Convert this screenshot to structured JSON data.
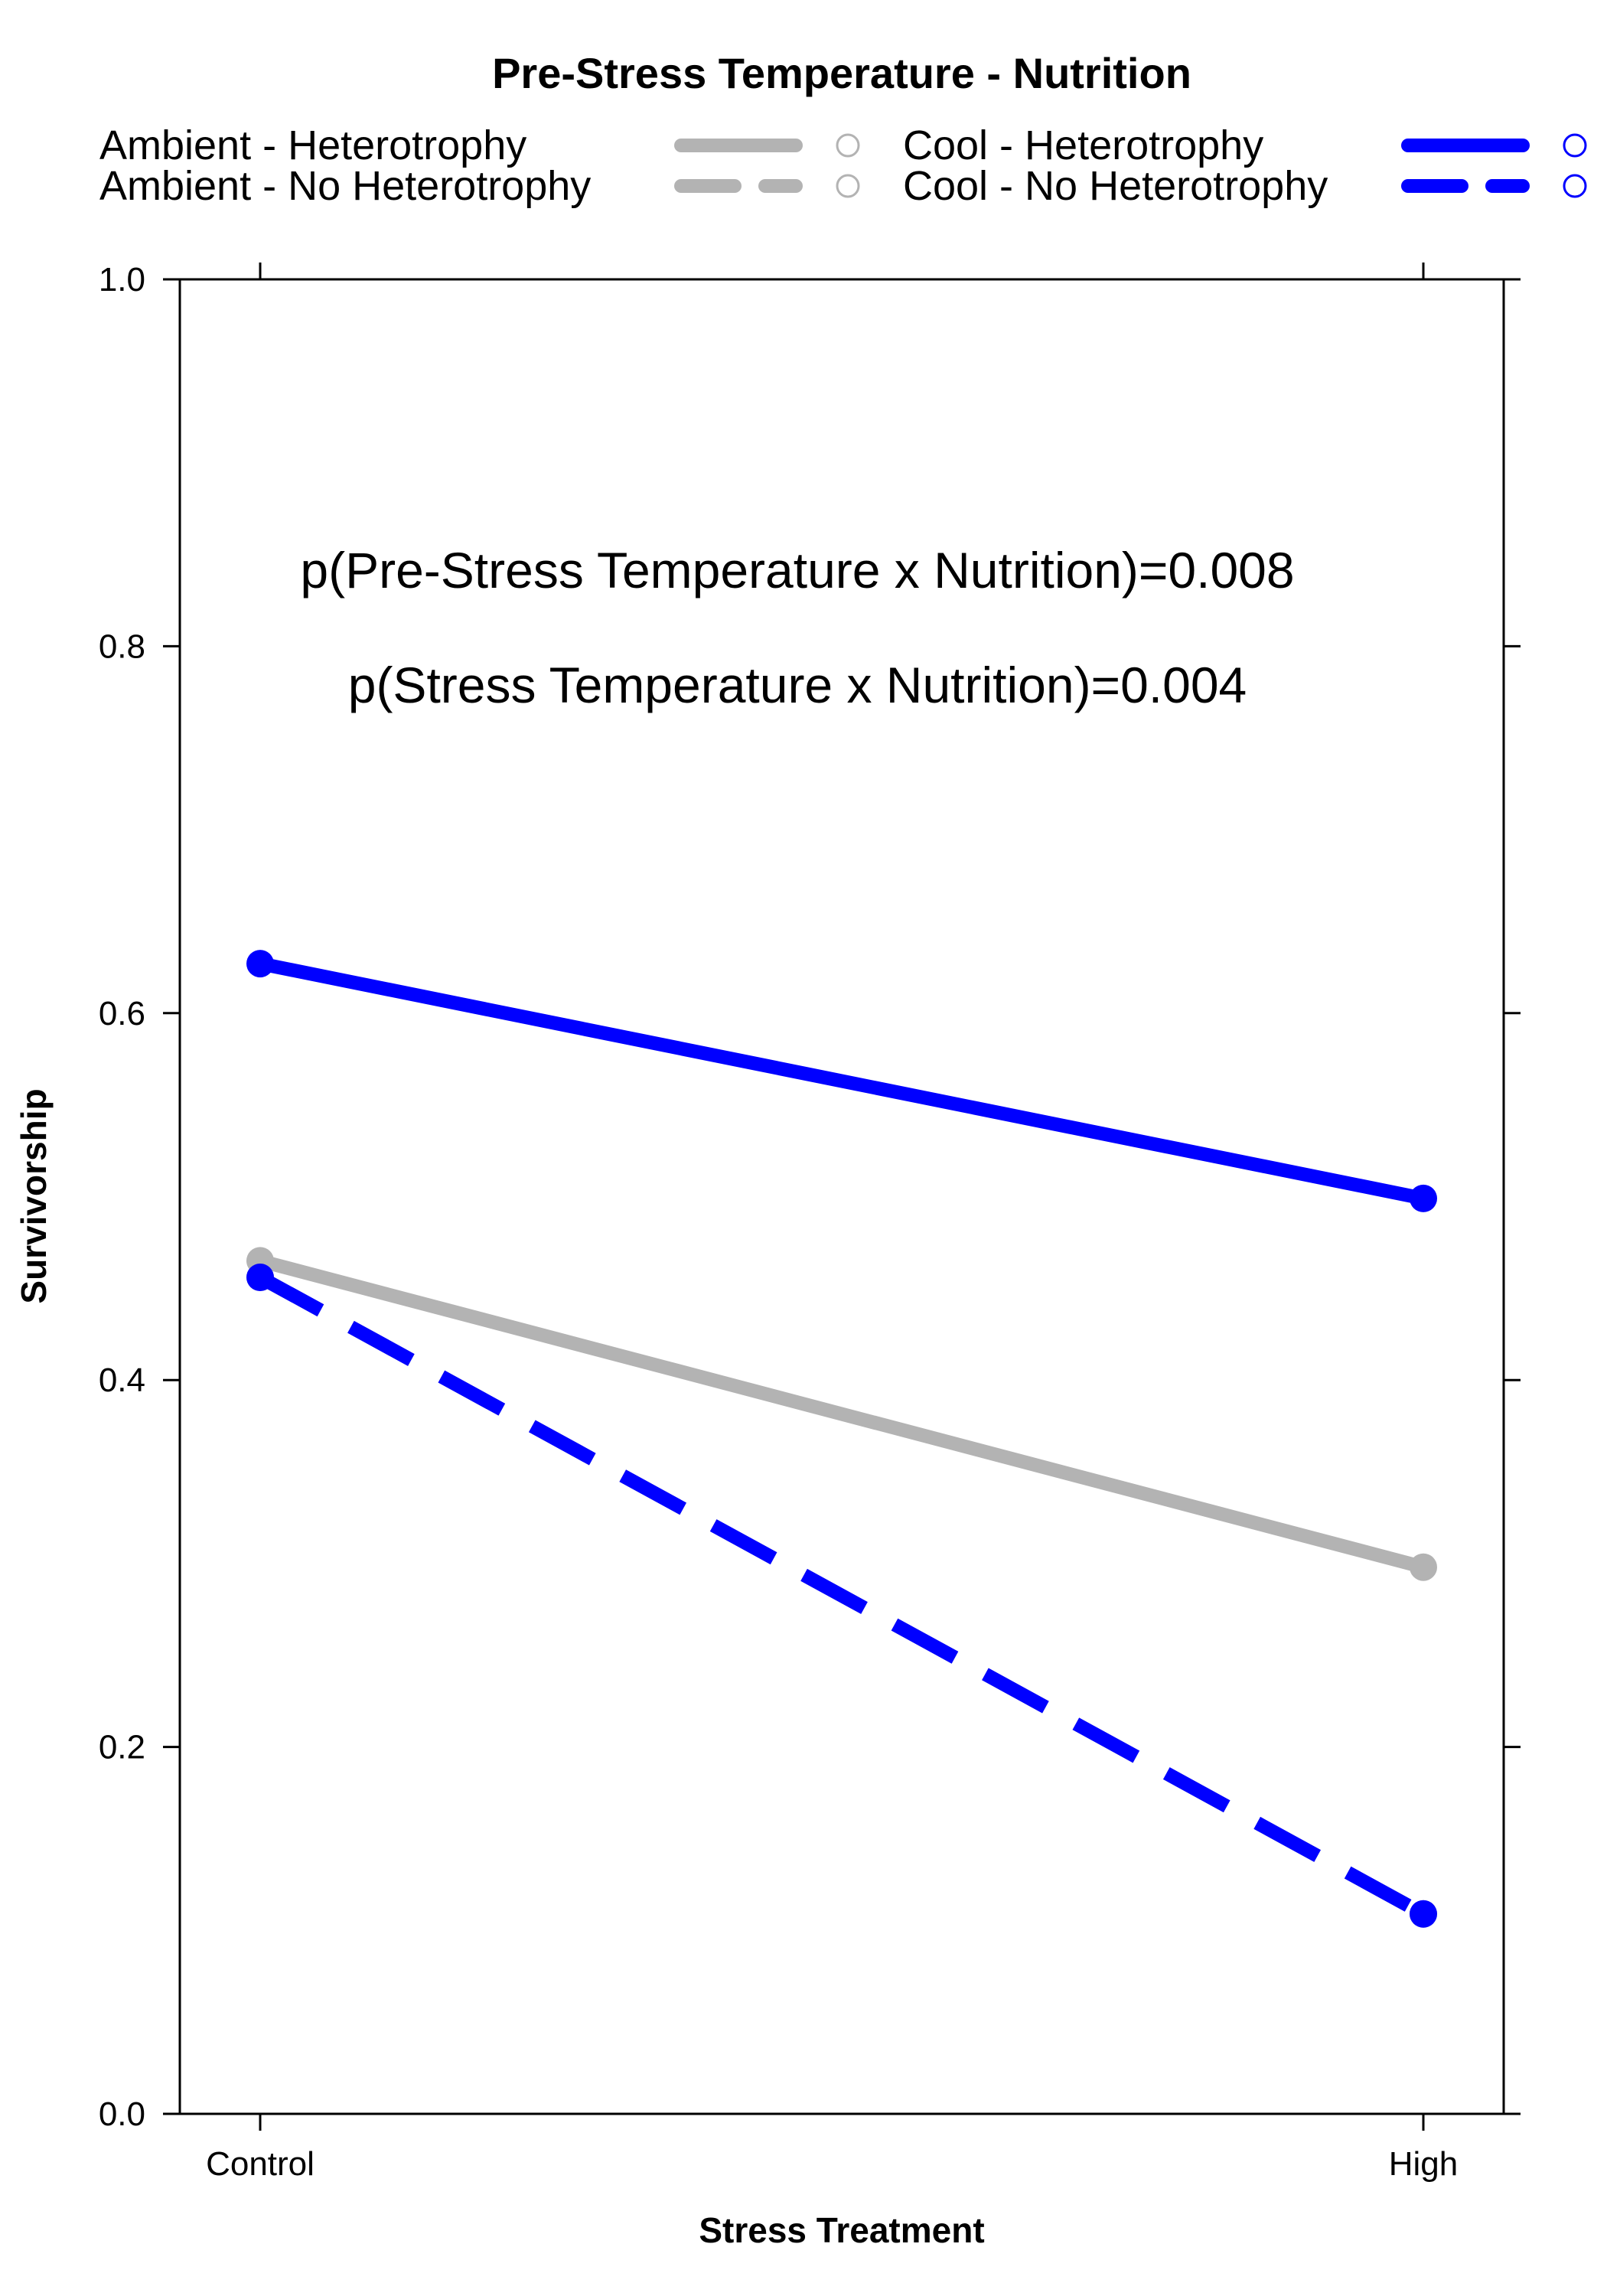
{
  "chart_data": {
    "type": "line",
    "title": "Pre-Stress Temperature - Nutrition",
    "xlabel": "Stress Treatment",
    "ylabel": "Survivorship",
    "categories": [
      "Control",
      "High"
    ],
    "ylim": [
      0,
      1
    ],
    "yticks": [
      "0.0",
      "0.2",
      "0.4",
      "0.6",
      "0.8",
      "1.0"
    ],
    "grid": false,
    "legend_position": "top",
    "annotations": [
      "p(Pre-Stress Temperature x Nutrition)=0.008",
      "p(Stress Temperature x Nutrition)=0.004"
    ],
    "series": [
      {
        "name": "Ambient - Heterotrophy",
        "values": [
          0.465,
          0.298
        ],
        "color": "#b3b3b3",
        "dashed": false
      },
      {
        "name": "Ambient - No Heterotrophy",
        "values": [
          0.456,
          0.109
        ],
        "color": "#b3b3b3",
        "dashed": true
      },
      {
        "name": "Cool - Heterotrophy",
        "values": [
          0.627,
          0.499
        ],
        "color": "#0000ff",
        "dashed": false
      },
      {
        "name": "Cool - No Heterotrophy",
        "values": [
          0.456,
          0.109
        ],
        "color": "#0000ff",
        "dashed": true
      }
    ]
  }
}
